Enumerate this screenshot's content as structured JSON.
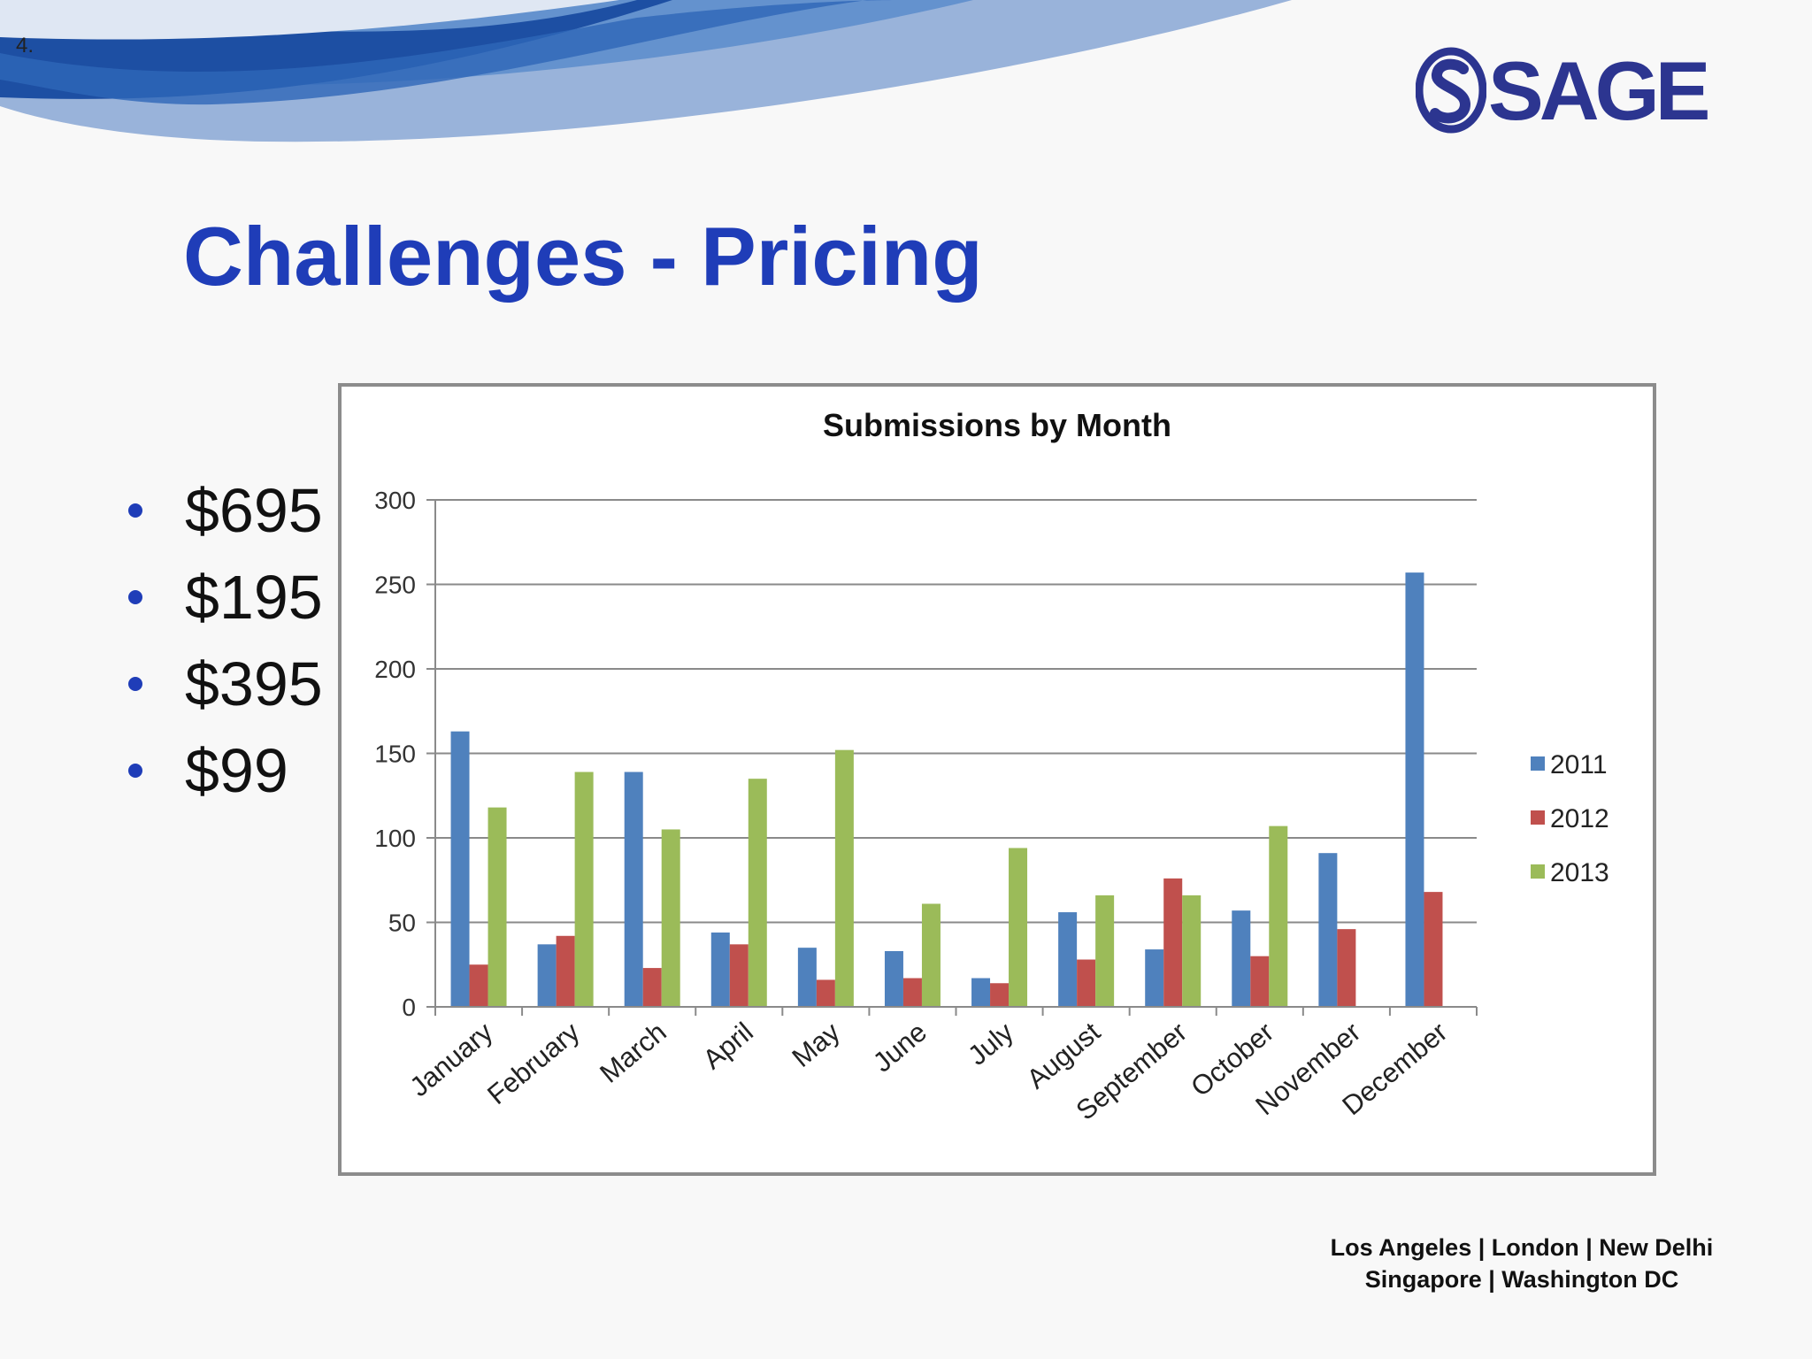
{
  "slide": {
    "number": "4.",
    "title": "Challenges - Pricing",
    "bullets": [
      "$695",
      "$195",
      "$395",
      "$99"
    ],
    "logo_text": "SAGE",
    "footer_line1": "Los Angeles | London | New Delhi",
    "footer_line2": "Singapore | Washington DC"
  },
  "colors": {
    "title": "#1f3db8",
    "logo": "#2c3590",
    "swoosh_dark": "#1d4fa3",
    "swoosh_light": "#8eabd6"
  },
  "chart_data": {
    "type": "bar",
    "title": "Submissions by Month",
    "categories": [
      "January",
      "February",
      "March",
      "April",
      "May",
      "June",
      "July",
      "August",
      "September",
      "October",
      "November",
      "December"
    ],
    "series": [
      {
        "name": "2011",
        "color": "#4f81bd",
        "values": [
          163,
          37,
          139,
          44,
          35,
          33,
          17,
          56,
          34,
          57,
          91,
          257
        ]
      },
      {
        "name": "2012",
        "color": "#c0504d",
        "values": [
          25,
          42,
          23,
          37,
          16,
          17,
          14,
          28,
          76,
          30,
          46,
          68
        ]
      },
      {
        "name": "2013",
        "color": "#9bbb59",
        "values": [
          118,
          139,
          105,
          135,
          152,
          61,
          94,
          66,
          66,
          107,
          null,
          null
        ]
      }
    ],
    "ylim": [
      0,
      300
    ],
    "yticks": [
      0,
      50,
      100,
      150,
      200,
      250,
      300
    ],
    "grid": true,
    "legend": "right"
  }
}
